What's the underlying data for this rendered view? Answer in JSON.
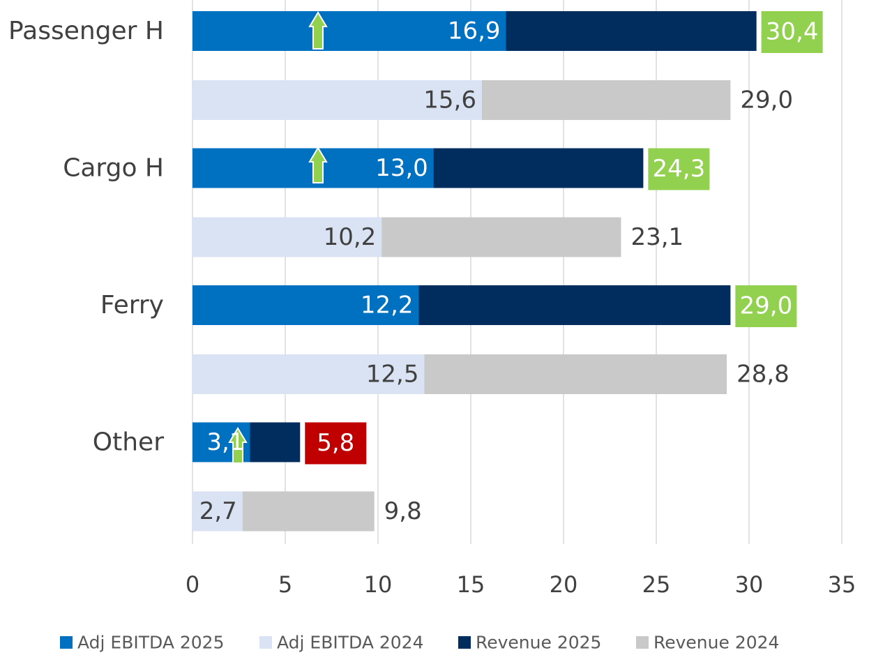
{
  "chart_data": {
    "type": "bar",
    "orientation": "horizontal",
    "categories": [
      "Passenger H",
      "Cargo H",
      "Ferry",
      "Other"
    ],
    "series": [
      {
        "name": "Adj EBITDA 2025",
        "color": "#0070c0",
        "values": [
          16.9,
          13.0,
          12.2,
          3.1
        ],
        "value_labels": [
          "16,9",
          "13,0",
          "12,2",
          "3,1"
        ]
      },
      {
        "name": "Adj EBITDA 2024",
        "color": "#dae3f3",
        "values": [
          15.6,
          10.2,
          12.5,
          2.7
        ],
        "value_labels": [
          "15,6",
          "10,2",
          "12,5",
          "2,7"
        ]
      },
      {
        "name": "Revenue 2025",
        "color": "#002d5e",
        "values": [
          30.4,
          24.3,
          29.0,
          5.8
        ],
        "value_labels": [
          "30,4",
          "24,3",
          "29,0",
          "5,8"
        ],
        "label_colors": [
          "#92d050",
          "#92d050",
          "#92d050",
          "#c00000"
        ]
      },
      {
        "name": "Revenue 2024",
        "color": "#c9c9c9",
        "values": [
          29.0,
          23.1,
          28.8,
          9.8
        ],
        "value_labels": [
          "29,0",
          "23,1",
          "28,8",
          "9,8"
        ]
      }
    ],
    "xlim": [
      0,
      35
    ],
    "xticks": [
      0,
      5,
      10,
      15,
      20,
      25,
      30,
      35
    ],
    "grid": true,
    "legend": "bottom"
  }
}
